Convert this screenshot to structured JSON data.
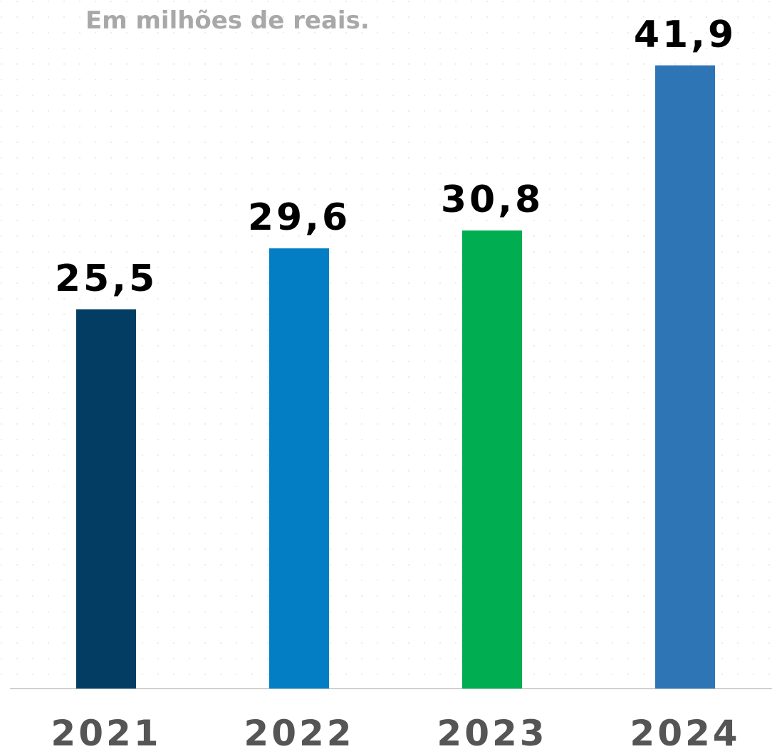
{
  "chart_data": {
    "type": "bar",
    "subtitle": "Em milhões de reais.",
    "categories": [
      "2021",
      "2022",
      "2023",
      "2024"
    ],
    "values": [
      25.5,
      29.6,
      30.8,
      41.9
    ],
    "value_labels": [
      "25,5",
      "29,6",
      "30,8",
      "41,9"
    ],
    "colors": [
      "#043d63",
      "#037ec4",
      "#00ad50",
      "#2e75b6"
    ]
  }
}
